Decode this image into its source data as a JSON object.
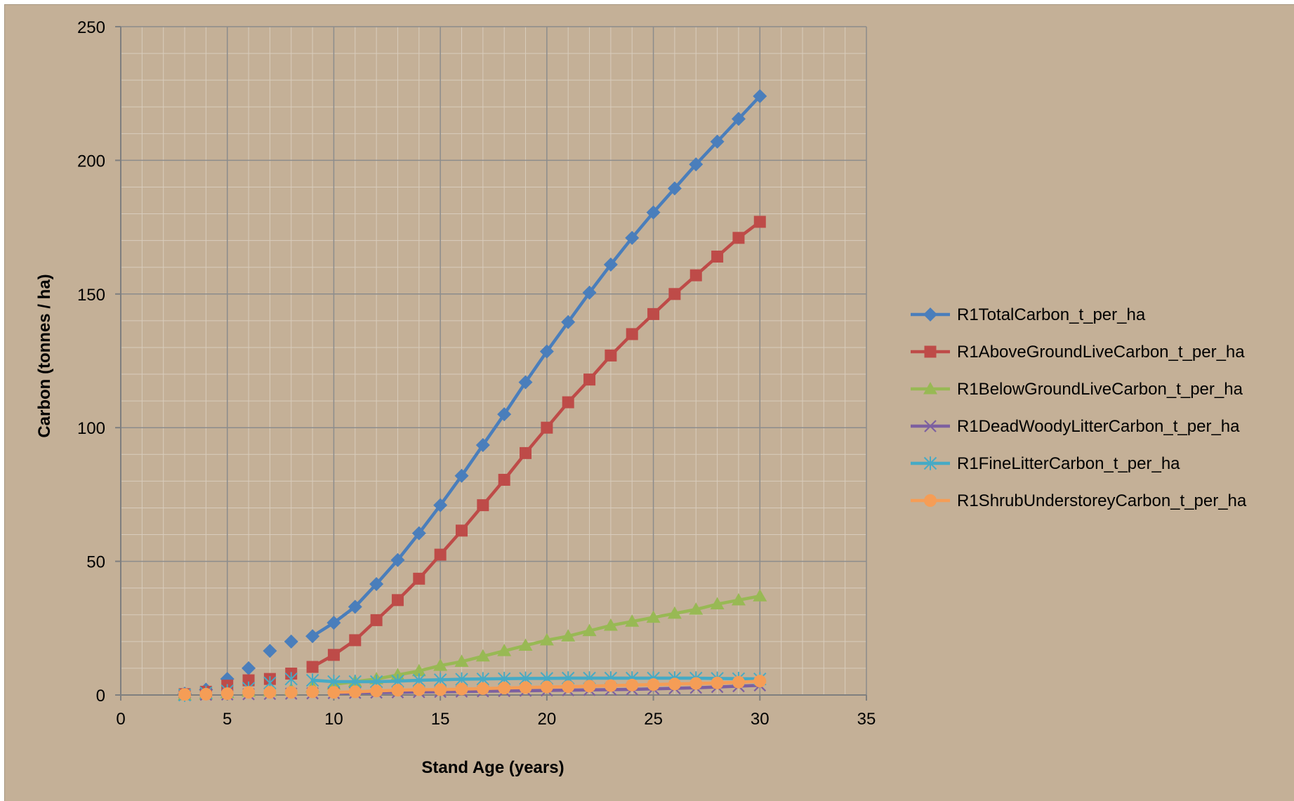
{
  "chart_data": {
    "type": "line",
    "title": "",
    "xlabel": "Stand Age (years)",
    "ylabel": "Carbon (tonnes / ha)",
    "xlim": [
      0,
      35
    ],
    "ylim": [
      0,
      250
    ],
    "x_ticks": [
      0,
      5,
      10,
      15,
      20,
      25,
      30,
      35
    ],
    "y_ticks": [
      0,
      50,
      100,
      150,
      200,
      250
    ],
    "x_tick_labels": [
      "0",
      "5",
      "10",
      "15",
      "20",
      "25",
      "30",
      "35"
    ],
    "y_tick_labels": [
      "0",
      "50",
      "100",
      "150",
      "200",
      "250"
    ],
    "grid": true,
    "minor_grid": true,
    "legend_position": "right",
    "x": [
      3,
      4,
      5,
      6,
      7,
      8,
      9,
      10,
      11,
      12,
      13,
      14,
      15,
      16,
      17,
      18,
      19,
      20,
      21,
      22,
      23,
      24,
      25,
      26,
      27,
      28,
      29,
      30
    ],
    "series": [
      {
        "name": "R1TotalCarbon_t_per_ha",
        "color": "#4a7ebb",
        "marker": "diamond",
        "line_start_x": 9,
        "values": [
          0.5,
          2,
          6,
          10,
          16.5,
          20,
          22,
          27,
          33,
          41.5,
          50.5,
          60.5,
          71,
          82,
          93.5,
          105,
          117,
          128.5,
          139.5,
          150.5,
          161,
          171,
          180.5,
          189.5,
          198.5,
          207,
          215.5,
          224
        ]
      },
      {
        "name": "R1AboveGroundLiveCarbon_t_per_ha",
        "color": "#be4b48",
        "marker": "square",
        "line_start_x": 9,
        "values": [
          0.3,
          1.2,
          3.5,
          5.5,
          6,
          8,
          10.5,
          15,
          20.5,
          28,
          35.5,
          43.5,
          52.5,
          61.5,
          71,
          80.5,
          90.5,
          100,
          109.5,
          118,
          127,
          135,
          142.5,
          150,
          157,
          164,
          171,
          177
        ]
      },
      {
        "name": "R1BelowGroundLiveCarbon_t_per_ha",
        "color": "#98b954",
        "marker": "triangle",
        "line_start_x": 10,
        "values": [
          0,
          0.3,
          0.8,
          1.3,
          1.5,
          2,
          3,
          4,
          5,
          6,
          7.5,
          9,
          11,
          12.5,
          14.5,
          16.5,
          18.5,
          20.5,
          22,
          24,
          26,
          27.5,
          29,
          30.5,
          32,
          34,
          35.5,
          37
        ]
      },
      {
        "name": "R1DeadWoodyLitterCarbon_t_per_ha",
        "color": "#7d60a0",
        "marker": "x",
        "line_start_x": 10,
        "values": [
          0,
          0.1,
          0.2,
          0.3,
          0.4,
          0.5,
          0.6,
          0.7,
          0.8,
          0.9,
          1,
          1.1,
          1.2,
          1.3,
          1.4,
          1.5,
          1.6,
          1.7,
          1.8,
          1.9,
          2,
          2.1,
          2.3,
          2.5,
          2.7,
          3,
          3.3,
          3.6
        ]
      },
      {
        "name": "R1FineLitterCarbon_t_per_ha",
        "color": "#46aac5",
        "marker": "star",
        "line_start_x": 9,
        "values": [
          0,
          0.8,
          1.5,
          2.5,
          4.5,
          6,
          5.5,
          5,
          5,
          5,
          5.2,
          5.5,
          5.7,
          5.9,
          6,
          6.1,
          6.2,
          6.2,
          6.3,
          6.3,
          6.3,
          6.3,
          6.3,
          6.3,
          6.3,
          6.2,
          6.1,
          6
        ]
      },
      {
        "name": "R1ShrubUnderstoreyCarbon_t_per_ha",
        "color": "#f59d56",
        "marker": "circle",
        "line_start_x": 10,
        "values": [
          0.2,
          0.3,
          0.5,
          1,
          1,
          1,
          1.2,
          1,
          1.2,
          1.5,
          1.8,
          2,
          2,
          2.2,
          2.4,
          2.6,
          2.8,
          3,
          3.1,
          3.3,
          3.5,
          3.7,
          3.9,
          4.1,
          4.3,
          4.5,
          4.8,
          5.2
        ]
      }
    ]
  }
}
